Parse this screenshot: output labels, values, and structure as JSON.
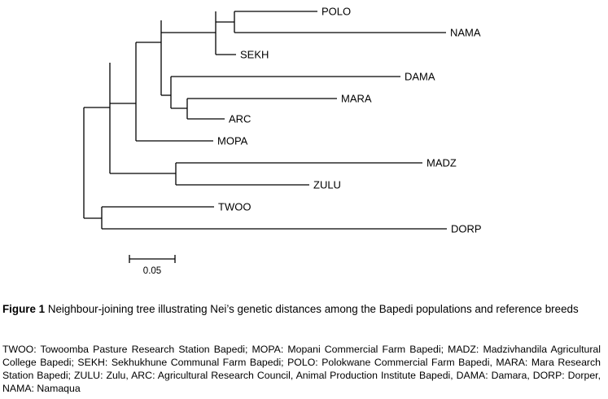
{
  "tree": {
    "leaves": [
      {
        "id": "polo",
        "label": "POLO"
      },
      {
        "id": "nama",
        "label": "NAMA"
      },
      {
        "id": "sekh",
        "label": "SEKH"
      },
      {
        "id": "dama",
        "label": "DAMA"
      },
      {
        "id": "mara",
        "label": "MARA"
      },
      {
        "id": "arc",
        "label": "ARC"
      },
      {
        "id": "mopa",
        "label": "MOPA"
      },
      {
        "id": "madz",
        "label": "MADZ"
      },
      {
        "id": "zulu",
        "label": "ZULU"
      },
      {
        "id": "twoo",
        "label": "TWOO"
      },
      {
        "id": "dorp",
        "label": "DORP"
      }
    ],
    "scale_bar_label": "0.05"
  },
  "caption": {
    "figure_label": "Figure 1",
    "text": " Neighbour-joining tree illustrating Nei’s genetic distances among the Bapedi populations and reference breeds"
  },
  "abbreviations": "TWOO: Towoomba Pasture Research Station Bapedi; MOPA: Mopani Commercial Farm Bapedi; MADZ: Madzivhandila Agricultural College Bapedi; SEKH: Sekhukhune Communal Farm Bapedi; POLO: Polokwane Commercial Farm Bapedi, MARA: Mara Research Station Bapedi; ZULU: Zulu, ARC: Agricultural Research Council, Animal Production Institute Bapedi, DAMA: Damara, DORP: Dorper, NAMA: Namaqua"
}
